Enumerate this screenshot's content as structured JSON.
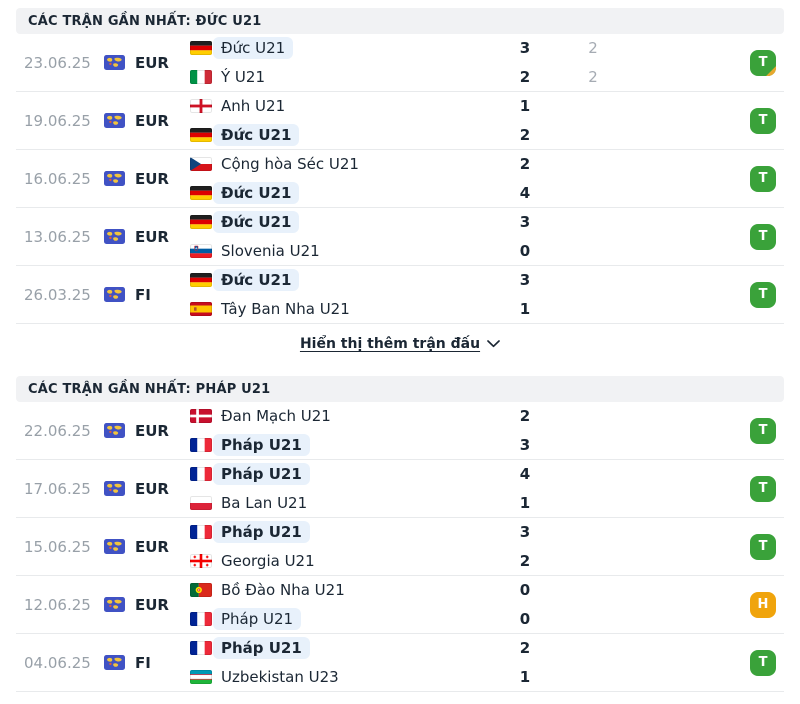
{
  "sections": [
    {
      "title": "CÁC TRẬN GẦN NHẤT: ĐỨC U21",
      "matches": [
        {
          "date": "23.06.25",
          "competition": "EUR",
          "home": {
            "name": "Đức U21",
            "flag": "germany",
            "highlight": true,
            "bold": false
          },
          "away": {
            "name": "Ý U21",
            "flag": "italy",
            "highlight": false,
            "bold": false
          },
          "score": {
            "home": "3",
            "away": "2"
          },
          "secondary_score": {
            "home": "2",
            "away": "2"
          },
          "result": {
            "label": "T",
            "type": "win",
            "corner": true
          }
        },
        {
          "date": "19.06.25",
          "competition": "EUR",
          "home": {
            "name": "Anh U21",
            "flag": "england",
            "highlight": false,
            "bold": false
          },
          "away": {
            "name": "Đức U21",
            "flag": "germany",
            "highlight": true,
            "bold": true
          },
          "score": {
            "home": "1",
            "away": "2"
          },
          "secondary_score": null,
          "result": {
            "label": "T",
            "type": "win",
            "corner": false
          }
        },
        {
          "date": "16.06.25",
          "competition": "EUR",
          "home": {
            "name": "Cộng hòa Séc U21",
            "flag": "czech",
            "highlight": false,
            "bold": false
          },
          "away": {
            "name": "Đức U21",
            "flag": "germany",
            "highlight": true,
            "bold": true
          },
          "score": {
            "home": "2",
            "away": "4"
          },
          "secondary_score": null,
          "result": {
            "label": "T",
            "type": "win",
            "corner": false
          }
        },
        {
          "date": "13.06.25",
          "competition": "EUR",
          "home": {
            "name": "Đức U21",
            "flag": "germany",
            "highlight": true,
            "bold": true
          },
          "away": {
            "name": "Slovenia U21",
            "flag": "slovenia",
            "highlight": false,
            "bold": false
          },
          "score": {
            "home": "3",
            "away": "0"
          },
          "secondary_score": null,
          "result": {
            "label": "T",
            "type": "win",
            "corner": false
          }
        },
        {
          "date": "26.03.25",
          "competition": "FI",
          "home": {
            "name": "Đức U21",
            "flag": "germany",
            "highlight": true,
            "bold": true
          },
          "away": {
            "name": "Tây Ban Nha U21",
            "flag": "spain",
            "highlight": false,
            "bold": false
          },
          "score": {
            "home": "3",
            "away": "1"
          },
          "secondary_score": null,
          "result": {
            "label": "T",
            "type": "win",
            "corner": false
          }
        }
      ],
      "show_more": {
        "label": "Hiển thị thêm trận đấu",
        "icon": "chevron-down-icon"
      }
    },
    {
      "title": "CÁC TRẬN GẦN NHẤT: PHÁP U21",
      "matches": [
        {
          "date": "22.06.25",
          "competition": "EUR",
          "home": {
            "name": "Đan Mạch U21",
            "flag": "denmark",
            "highlight": false,
            "bold": false
          },
          "away": {
            "name": "Pháp U21",
            "flag": "france",
            "highlight": true,
            "bold": true
          },
          "score": {
            "home": "2",
            "away": "3"
          },
          "secondary_score": null,
          "result": {
            "label": "T",
            "type": "win",
            "corner": false
          }
        },
        {
          "date": "17.06.25",
          "competition": "EUR",
          "home": {
            "name": "Pháp U21",
            "flag": "france",
            "highlight": true,
            "bold": true
          },
          "away": {
            "name": "Ba Lan U21",
            "flag": "poland",
            "highlight": false,
            "bold": false
          },
          "score": {
            "home": "4",
            "away": "1"
          },
          "secondary_score": null,
          "result": {
            "label": "T",
            "type": "win",
            "corner": false
          }
        },
        {
          "date": "15.06.25",
          "competition": "EUR",
          "home": {
            "name": "Pháp U21",
            "flag": "france",
            "highlight": true,
            "bold": true
          },
          "away": {
            "name": "Georgia U21",
            "flag": "georgia",
            "highlight": false,
            "bold": false
          },
          "score": {
            "home": "3",
            "away": "2"
          },
          "secondary_score": null,
          "result": {
            "label": "T",
            "type": "win",
            "corner": false
          }
        },
        {
          "date": "12.06.25",
          "competition": "EUR",
          "home": {
            "name": "Bồ Đào Nha U21",
            "flag": "portugal",
            "highlight": false,
            "bold": false
          },
          "away": {
            "name": "Pháp U21",
            "flag": "france",
            "highlight": true,
            "bold": false
          },
          "score": {
            "home": "0",
            "away": "0"
          },
          "secondary_score": null,
          "result": {
            "label": "H",
            "type": "draw",
            "corner": false
          }
        },
        {
          "date": "04.06.25",
          "competition": "FI",
          "home": {
            "name": "Pháp U21",
            "flag": "france",
            "highlight": true,
            "bold": true
          },
          "away": {
            "name": "Uzbekistan U23",
            "flag": "uzbekistan",
            "highlight": false,
            "bold": false
          },
          "score": {
            "home": "2",
            "away": "1"
          },
          "secondary_score": null,
          "result": {
            "label": "T",
            "type": "win",
            "corner": false
          }
        }
      ],
      "show_more": null
    }
  ],
  "colors": {
    "ink": "#1b2734",
    "muted": "#98a0a8",
    "header_bar_bg": "#f1f2f4",
    "divider": "#e8eaec",
    "team_highlight": "#e8f1fb",
    "win_badge": "#3aa23a",
    "draw_badge": "#f0a40c",
    "win_corner": "#e8a82e",
    "competition_icon_bg": "#4052c4",
    "competition_icon_map": "#f2c53d"
  }
}
